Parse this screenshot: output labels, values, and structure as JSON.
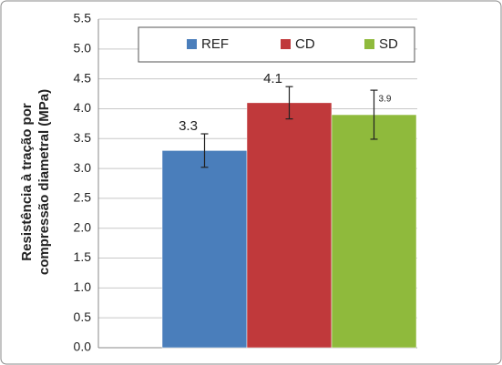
{
  "chart_data": {
    "type": "bar",
    "y_label_lines": [
      "Resistência à tração por",
      "compressão diametral (MPa)"
    ],
    "categories": [
      null
    ],
    "series": [
      {
        "name": "REF",
        "color": "#4a7ebb",
        "values": [
          3.3
        ],
        "errors": [
          0.28
        ]
      },
      {
        "name": "CD",
        "color": "#c0393b",
        "values": [
          4.1
        ],
        "errors": [
          0.27
        ]
      },
      {
        "name": "SD",
        "color": "#8fba3c",
        "values": [
          3.9
        ],
        "errors": [
          0.41
        ]
      }
    ],
    "ylim": [
      0,
      5.5
    ],
    "yticks": [
      {
        "value": 0,
        "label": "0.0"
      },
      {
        "value": 0.5,
        "label": "0.5"
      },
      {
        "value": 1,
        "label": "1.0"
      },
      {
        "value": 1.5,
        "label": "1.5"
      },
      {
        "value": 2,
        "label": "2.0"
      },
      {
        "value": 2.5,
        "label": "2.5"
      },
      {
        "value": 3,
        "label": "3.0"
      },
      {
        "value": 3.5,
        "label": "3.5"
      },
      {
        "value": 4,
        "label": "4.0"
      },
      {
        "value": 4.5,
        "label": "4.5"
      },
      {
        "value": 5,
        "label": "5.0"
      },
      {
        "value": 5.5,
        "label": "5.5"
      }
    ],
    "grid": true,
    "legend": "top"
  }
}
